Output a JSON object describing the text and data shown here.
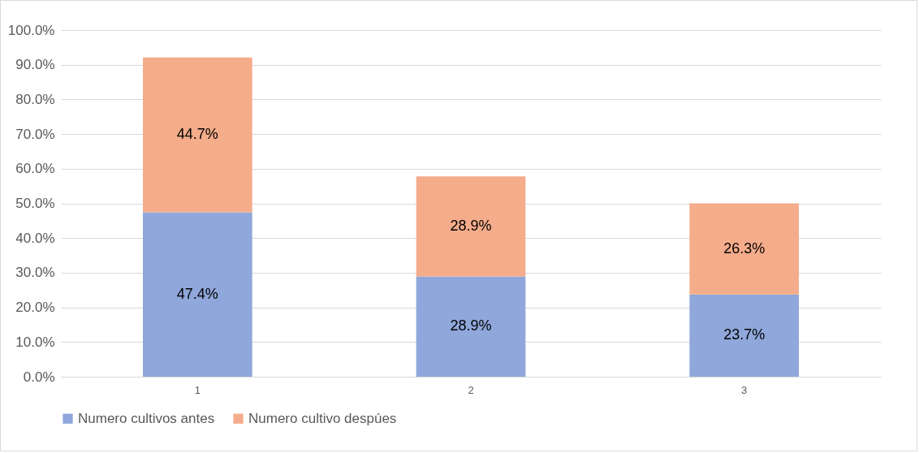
{
  "chart_data": {
    "type": "bar",
    "stacked": true,
    "categories": [
      "1",
      "2",
      "3"
    ],
    "series": [
      {
        "name": "Numero cultivos antes",
        "color": "#8fa7db",
        "values": [
          47.4,
          28.9,
          23.7
        ],
        "value_labels": [
          "47.4%",
          "28.9%",
          "23.7%"
        ]
      },
      {
        "name": "Numero cultivo despúes",
        "color": "#f5ac8a",
        "values": [
          44.7,
          28.9,
          26.3
        ],
        "value_labels": [
          "44.7%",
          "28.9%",
          "26.3%"
        ]
      }
    ],
    "ylim": [
      0,
      100
    ],
    "yticks": [
      {
        "value": 0,
        "label": "0.0%"
      },
      {
        "value": 10,
        "label": "10.0%"
      },
      {
        "value": 20,
        "label": "20.0%"
      },
      {
        "value": 30,
        "label": "30.0%"
      },
      {
        "value": 40,
        "label": "40.0%"
      },
      {
        "value": 50,
        "label": "50.0%"
      },
      {
        "value": 60,
        "label": "60.0%"
      },
      {
        "value": 70,
        "label": "70.0%"
      },
      {
        "value": 80,
        "label": "80.0%"
      },
      {
        "value": 90,
        "label": "90.0%"
      },
      {
        "value": 100,
        "label": "100.0%"
      }
    ],
    "grid": "y",
    "legend": "bottom"
  }
}
